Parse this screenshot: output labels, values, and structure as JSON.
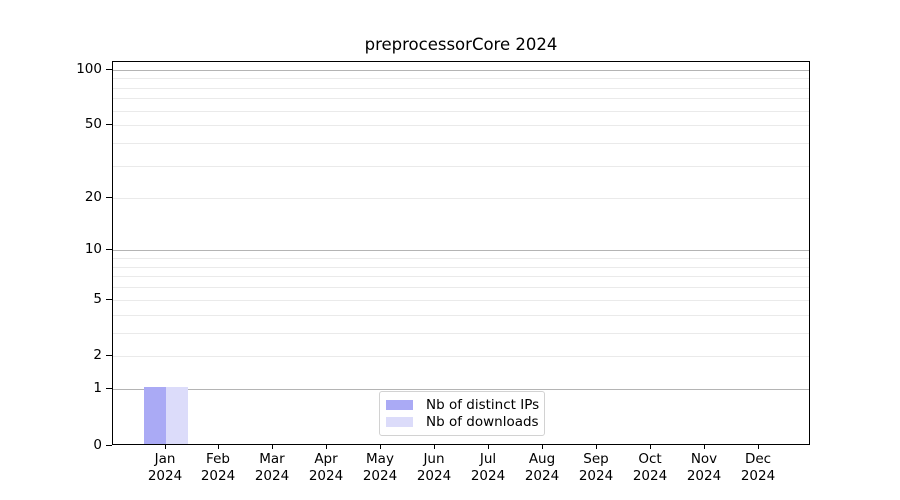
{
  "chart_data": {
    "type": "bar",
    "title": "preprocessorCore 2024",
    "categories": [
      "Jan",
      "Feb",
      "Mar",
      "Apr",
      "May",
      "Jun",
      "Jul",
      "Aug",
      "Sep",
      "Oct",
      "Nov",
      "Dec"
    ],
    "category_year": "2024",
    "series": [
      {
        "name": "Nb of distinct IPs",
        "color": "#aaaaf5",
        "values": [
          1,
          0,
          0,
          0,
          0,
          0,
          0,
          0,
          0,
          0,
          0,
          0
        ]
      },
      {
        "name": "Nb of downloads",
        "color": "#dcdcfa",
        "values": [
          1,
          0,
          0,
          0,
          0,
          0,
          0,
          0,
          0,
          0,
          0,
          0
        ]
      }
    ],
    "yaxis": {
      "scale": "log1p",
      "ylim": [
        0,
        110
      ],
      "labeled_ticks": [
        0,
        1,
        2,
        5,
        10,
        20,
        50,
        100
      ],
      "major_grid_ticks": [
        1,
        10,
        100
      ],
      "minor_grid_ticks": [
        3,
        4,
        6,
        7,
        8,
        9,
        30,
        40,
        60,
        70,
        80,
        90
      ]
    },
    "xlabel": "",
    "ylabel": "",
    "grid": "horizontal",
    "legend_position": "lower center",
    "colors": {
      "major_grid": "#b4b4b4",
      "minor_grid": "#eaeaea",
      "axis_spine": "#000000",
      "text": "#000000",
      "background": "#ffffff"
    }
  }
}
